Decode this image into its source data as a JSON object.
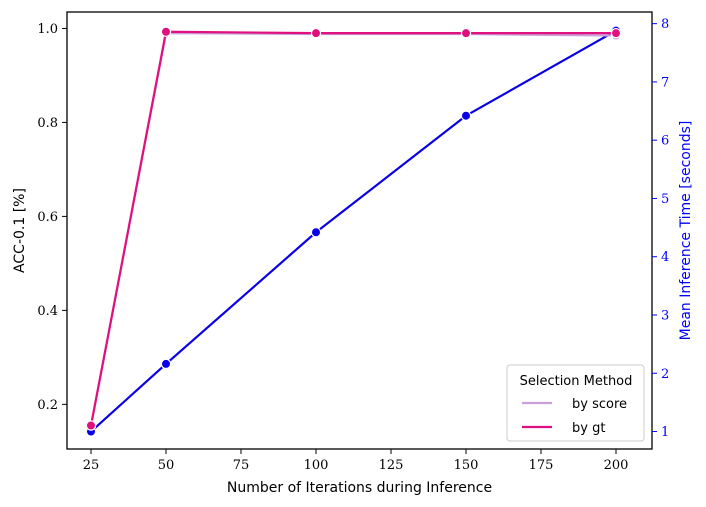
{
  "chart_data": {
    "type": "line",
    "title": "",
    "xlabel": "Number of Iterations during Inference",
    "ylabel_left": "ACC-0.1 [%]",
    "ylabel_right": "Mean Inference Time [seconds]",
    "x": [
      25,
      50,
      100,
      150,
      200
    ],
    "x_ticks": [
      25,
      50,
      75,
      100,
      125,
      150,
      175,
      200
    ],
    "xlim": [
      17,
      212
    ],
    "ylim_left": [
      0.105,
      1.035
    ],
    "y_ticks_left": [
      0.2,
      0.4,
      0.6,
      0.8,
      1.0
    ],
    "ylim_right": [
      0.7,
      8.2
    ],
    "y_ticks_right": [
      1,
      2,
      3,
      4,
      5,
      6,
      7,
      8
    ],
    "grid": false,
    "series": [
      {
        "name": "by score",
        "axis": "left",
        "color": "#c9a0dc",
        "values": [
          0.155,
          0.99,
          0.988,
          0.988,
          0.985
        ]
      },
      {
        "name": "by gt",
        "axis": "left",
        "color": "#e0117f",
        "values": [
          0.155,
          0.993,
          0.99,
          0.99,
          0.99
        ]
      },
      {
        "name": "",
        "axis": "right",
        "color": "#0a00e6",
        "values": [
          1.0,
          2.16,
          4.42,
          6.42,
          7.88
        ]
      }
    ],
    "legend": {
      "title": "Selection Method",
      "placement": "lower-right",
      "entries": [
        {
          "label": "by score",
          "color": "#c9a0dc"
        },
        {
          "label": "by gt",
          "color": "#e0117f"
        }
      ]
    },
    "right_axis_color": "#0000ff"
  }
}
